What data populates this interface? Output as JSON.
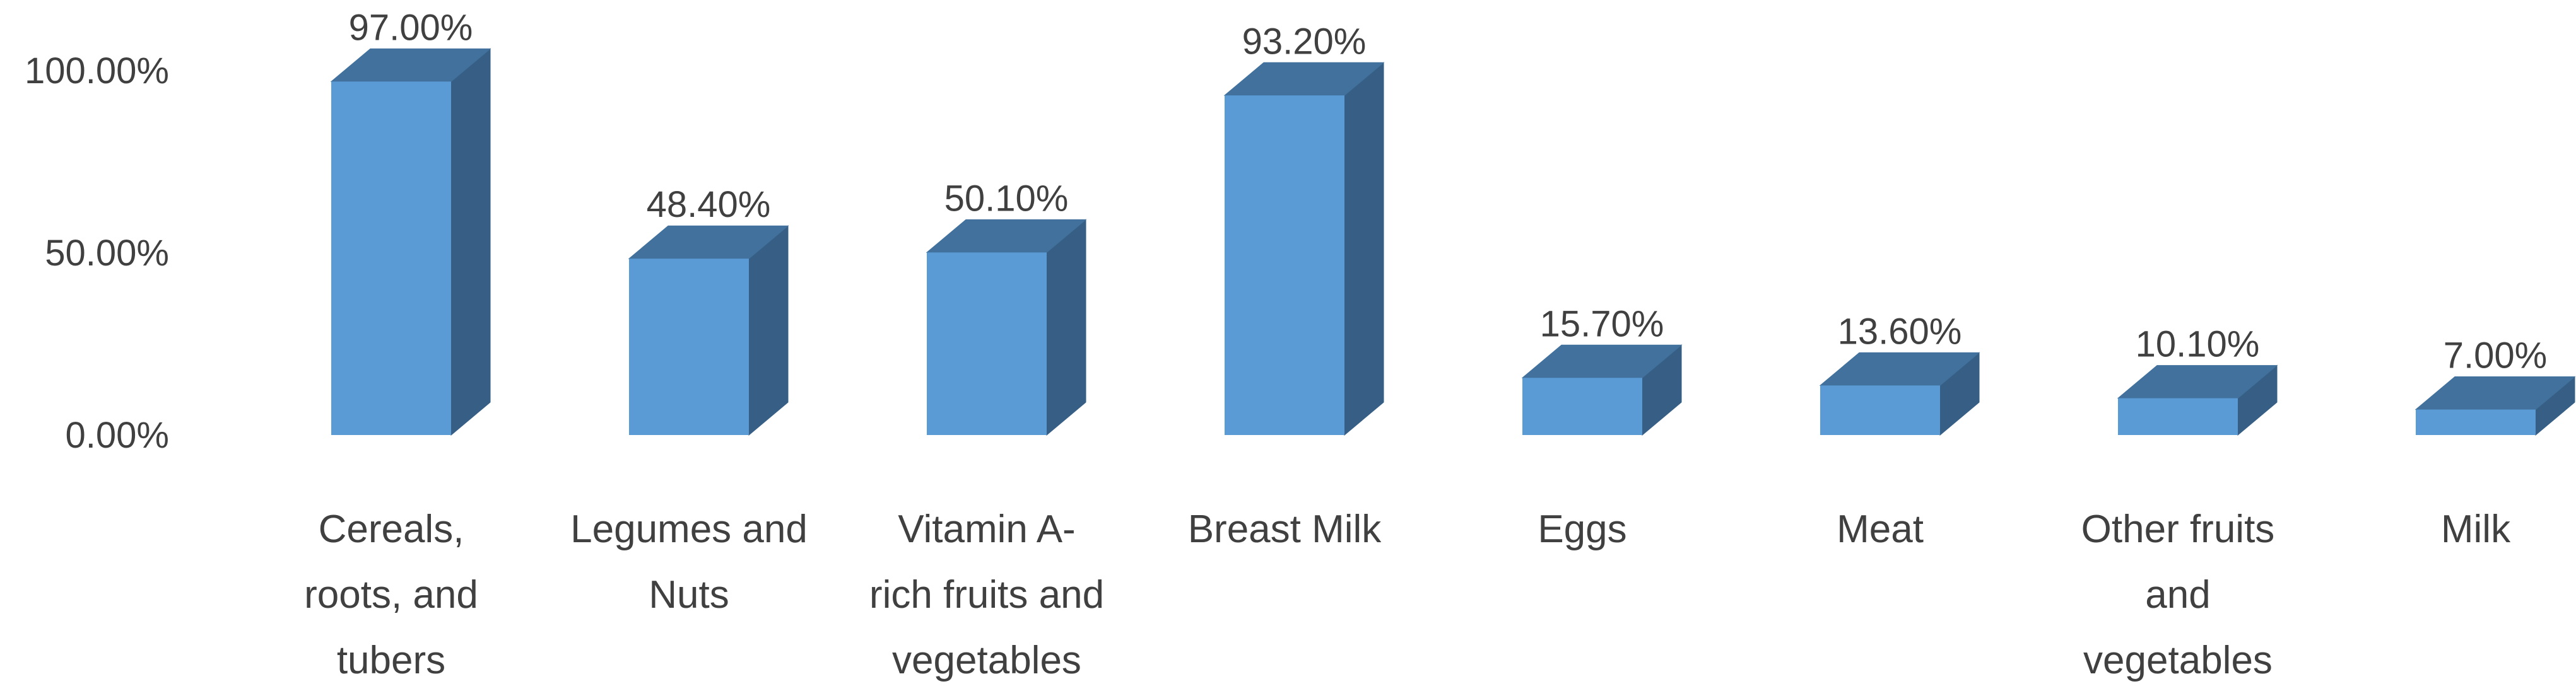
{
  "chart_data": {
    "type": "bar",
    "categories": [
      "Cereals, roots, and tubers",
      "Legumes and Nuts",
      "Vitamin A-rich fruits and vegetables",
      "Breast Milk",
      "Eggs",
      "Meat",
      "Other fruits and vegetables",
      "Milk"
    ],
    "category_lines": [
      [
        "Cereals,",
        "roots, and",
        "tubers"
      ],
      [
        "Legumes and",
        "Nuts"
      ],
      [
        "Vitamin A-",
        "rich fruits and",
        "vegetables"
      ],
      [
        "Breast Milk"
      ],
      [
        "Eggs"
      ],
      [
        "Meat"
      ],
      [
        "Other fruits",
        "and",
        "vegetables"
      ],
      [
        "Milk"
      ]
    ],
    "values": [
      97.0,
      48.4,
      50.1,
      93.2,
      15.7,
      13.6,
      10.1,
      7.0
    ],
    "data_labels": [
      "97.00%",
      "48.40%",
      "50.10%",
      "93.20%",
      "15.70%",
      "13.60%",
      "10.10%",
      "7.00%"
    ],
    "y_ticks": [
      0,
      50,
      100
    ],
    "y_tick_labels": [
      "0.00%",
      "50.00%",
      "100.00%"
    ],
    "ylim": [
      0,
      100
    ],
    "title": "",
    "xlabel": "",
    "ylabel": "",
    "grid": false,
    "style": "3d-column",
    "colors": {
      "front": "#5b9bd5",
      "top": "#41719c",
      "side": "#375f85",
      "text": "#404040"
    }
  }
}
